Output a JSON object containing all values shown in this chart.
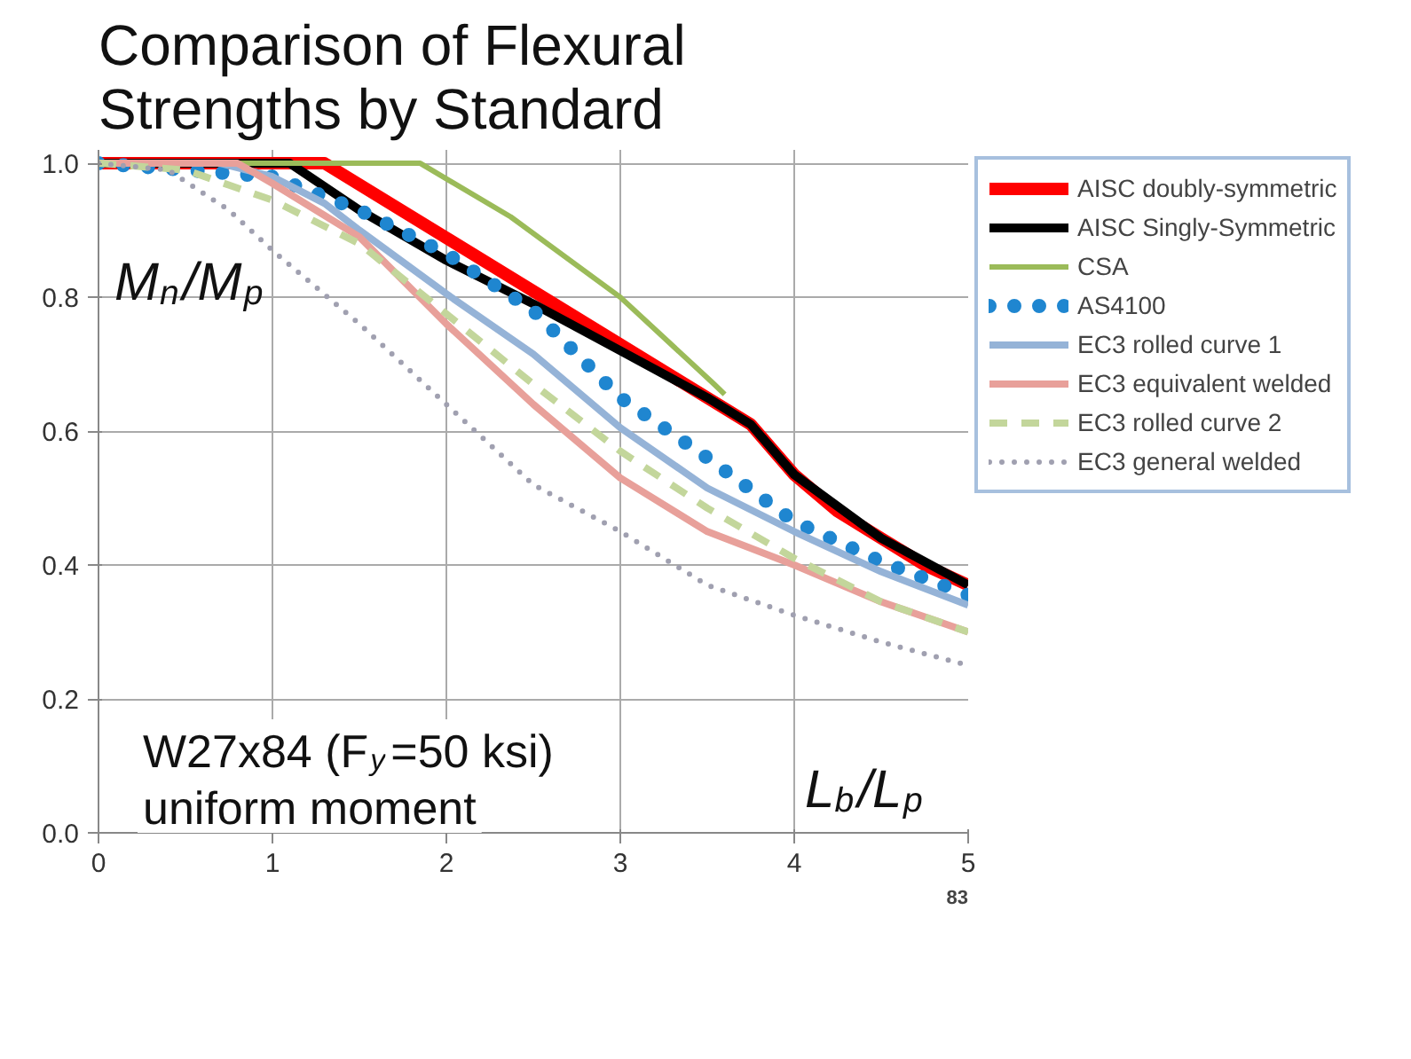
{
  "chart_data": {
    "type": "line",
    "title": "Comparison of Flexural\nStrengths by Standard",
    "xlabel": "L$_{b}$/L$_{p}$",
    "ylabel": "M$_{n}$/M$_{p}$",
    "xlim": [
      0,
      5
    ],
    "ylim": [
      0,
      1.02
    ],
    "xticks": [
      0,
      1,
      2,
      3,
      4,
      5
    ],
    "yticks": [
      {
        "value": 0,
        "label": "0.0"
      },
      {
        "value": 0.2,
        "label": "0.2"
      },
      {
        "value": 0.4,
        "label": "0.4"
      },
      {
        "value": 0.6,
        "label": "0.6"
      },
      {
        "value": 0.8,
        "label": "0.8"
      },
      {
        "value": 1,
        "label": "1.0"
      }
    ],
    "grid": true,
    "legend": "right",
    "annotations": [
      "W27x84 (F$_{y}$=50 ksi)\nuniform moment",
      "83"
    ],
    "series": [
      {
        "name": "AISC doubly-symmetric",
        "color": "#ff0000",
        "line_style": "solid",
        "x": [
          0,
          1.3,
          3.75,
          4,
          4.25,
          4.5,
          4.75,
          5
        ],
        "values": [
          1,
          1,
          0.61,
          0.535,
          0.48,
          0.44,
          0.4,
          0.37
        ]
      },
      {
        "name": "AISC Singly-Symmetric",
        "color": "#000000",
        "line_style": "solid",
        "x": [
          0,
          1.1,
          1.5,
          2,
          2.5,
          3,
          3.5,
          3.75,
          4,
          4.5,
          5
        ],
        "values": [
          1,
          1,
          0.93,
          0.855,
          0.79,
          0.72,
          0.65,
          0.61,
          0.535,
          0.44,
          0.37
        ]
      },
      {
        "name": "CSA",
        "color": "#9bbb59",
        "line_style": "solid",
        "x": [
          0,
          1.85,
          2.37,
          3,
          3.54,
          3.6
        ],
        "values": [
          1,
          1,
          0.92,
          0.8,
          0.67,
          0.655
        ]
      },
      {
        "name": "AS4100",
        "color": "#1f86d0",
        "line_style": "dotted",
        "x": [
          0,
          0.5,
          1,
          1.3,
          1.5,
          2,
          2.5,
          3,
          3.5,
          4,
          4.5,
          5
        ],
        "values": [
          1,
          0.99,
          0.98,
          0.95,
          0.93,
          0.865,
          0.78,
          0.65,
          0.56,
          0.465,
          0.405,
          0.355
        ]
      },
      {
        "name": "EC3 rolled curve 1",
        "color": "#95b3d7",
        "line_style": "solid",
        "x": [
          0,
          0.7,
          1,
          1.3,
          1.5,
          2,
          2.5,
          3,
          3.5,
          4,
          4.5,
          5
        ],
        "values": [
          1,
          1,
          0.98,
          0.94,
          0.9,
          0.805,
          0.715,
          0.605,
          0.515,
          0.45,
          0.39,
          0.34
        ]
      },
      {
        "name": "EC3 equivalent welded",
        "color": "#e8a09a",
        "line_style": "solid",
        "x": [
          0,
          0.8,
          1,
          1.5,
          2,
          2.5,
          3,
          3.5,
          4,
          4.5,
          5
        ],
        "values": [
          1,
          1,
          0.97,
          0.89,
          0.76,
          0.64,
          0.53,
          0.45,
          0.4,
          0.345,
          0.3
        ]
      },
      {
        "name": "EC3 rolled curve 2",
        "color": "#c3d69b",
        "line_style": "dashed",
        "x": [
          0,
          0.5,
          1,
          1.5,
          2,
          2.5,
          3,
          3.5,
          4,
          4.5,
          5
        ],
        "values": [
          1,
          0.99,
          0.945,
          0.88,
          0.775,
          0.67,
          0.57,
          0.485,
          0.41,
          0.345,
          0.3
        ]
      },
      {
        "name": "EC3 general welded",
        "color": "#a0a0b0",
        "line_style": "dotted",
        "x": [
          0,
          0.4,
          0.75,
          1,
          1.5,
          2,
          2.5,
          3,
          3.5,
          4,
          4.5,
          5
        ],
        "values": [
          1,
          0.99,
          0.93,
          0.87,
          0.76,
          0.64,
          0.52,
          0.45,
          0.37,
          0.325,
          0.285,
          0.25
        ]
      }
    ]
  }
}
